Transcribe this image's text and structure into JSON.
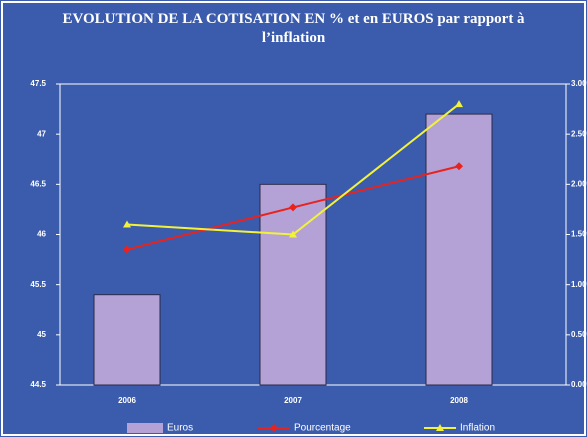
{
  "chart_data": {
    "type": "bar-line",
    "title": "EVOLUTION DE LA COTISATION EN % et en EUROS par rapport à l’inflation",
    "categories": [
      "2006",
      "2007",
      "2008"
    ],
    "series": [
      {
        "name": "Euros",
        "type": "bar",
        "color": "#b4a2d6",
        "values": [
          45.4,
          46.5,
          47.2
        ]
      },
      {
        "name": "Pourcentage",
        "type": "line",
        "axis": "y2",
        "color": "#e8231e",
        "marker": "diamond",
        "values": [
          1.35,
          1.77,
          2.18
        ]
      },
      {
        "name": "Inflation",
        "type": "line",
        "axis": "y2",
        "color": "#f2f23a",
        "marker": "triangle",
        "values": [
          1.6,
          1.5,
          2.8
        ]
      }
    ],
    "ylim": [
      44.5,
      47.5
    ],
    "yticks": [
      44.5,
      45,
      45.5,
      46,
      46.5,
      47,
      47.5
    ],
    "y2lim": [
      0,
      3
    ],
    "y2ticks": [
      {
        "value": 0,
        "label": "0.00%"
      },
      {
        "value": 0.5,
        "label": "0.50%"
      },
      {
        "value": 1,
        "label": "1.00%"
      },
      {
        "value": 1.5,
        "label": "1.50%"
      },
      {
        "value": 2,
        "label": "2.00%"
      },
      {
        "value": 2.5,
        "label": "2.50%"
      },
      {
        "value": 3,
        "label": "3.00%"
      }
    ],
    "grid": false,
    "legend": "bottom"
  }
}
